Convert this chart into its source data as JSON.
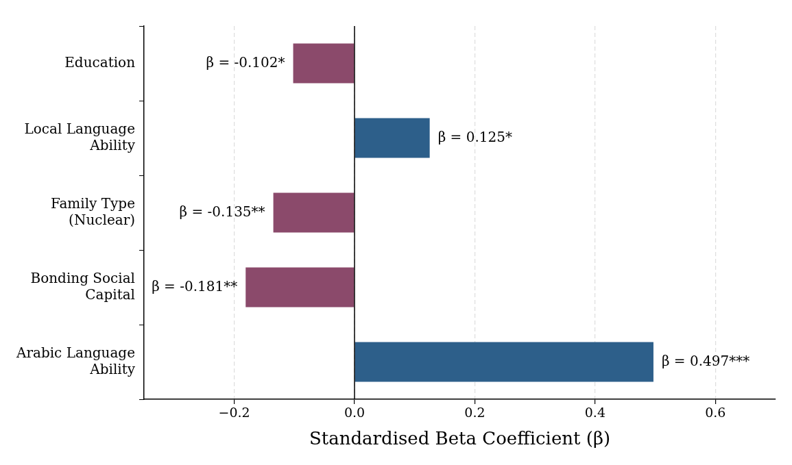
{
  "chart_data": {
    "type": "bar",
    "orientation": "horizontal",
    "xlabel": "Standardised Beta Coefficient (β)",
    "categories": [
      "Education",
      "Local Language Ability",
      "Family Type (Nuclear)",
      "Bonding Social Capital",
      "Arabic Language Ability"
    ],
    "values": [
      -0.102,
      0.125,
      -0.135,
      -0.181,
      0.497
    ],
    "colors": [
      "#8b4a6b",
      "#2d5f8a",
      "#8b4a6b",
      "#8b4a6b",
      "#2d5f8a"
    ],
    "value_labels": [
      "β = -0.102*",
      "β = 0.125*",
      "β = -0.135**",
      "β = -0.181**",
      "β = 0.497***"
    ],
    "xlim": [
      -0.35,
      0.7
    ],
    "xticks": [
      {
        "value": -0.2,
        "label": "−0.2"
      },
      {
        "value": 0,
        "label": "0.0"
      },
      0.2,
      0.4,
      0.6
    ],
    "ref_lines": [
      {
        "axis": "x",
        "value": 0,
        "color": "#000000",
        "line_style": "solid"
      }
    ],
    "grid": "x",
    "line_style": "dashed",
    "legend": false
  }
}
